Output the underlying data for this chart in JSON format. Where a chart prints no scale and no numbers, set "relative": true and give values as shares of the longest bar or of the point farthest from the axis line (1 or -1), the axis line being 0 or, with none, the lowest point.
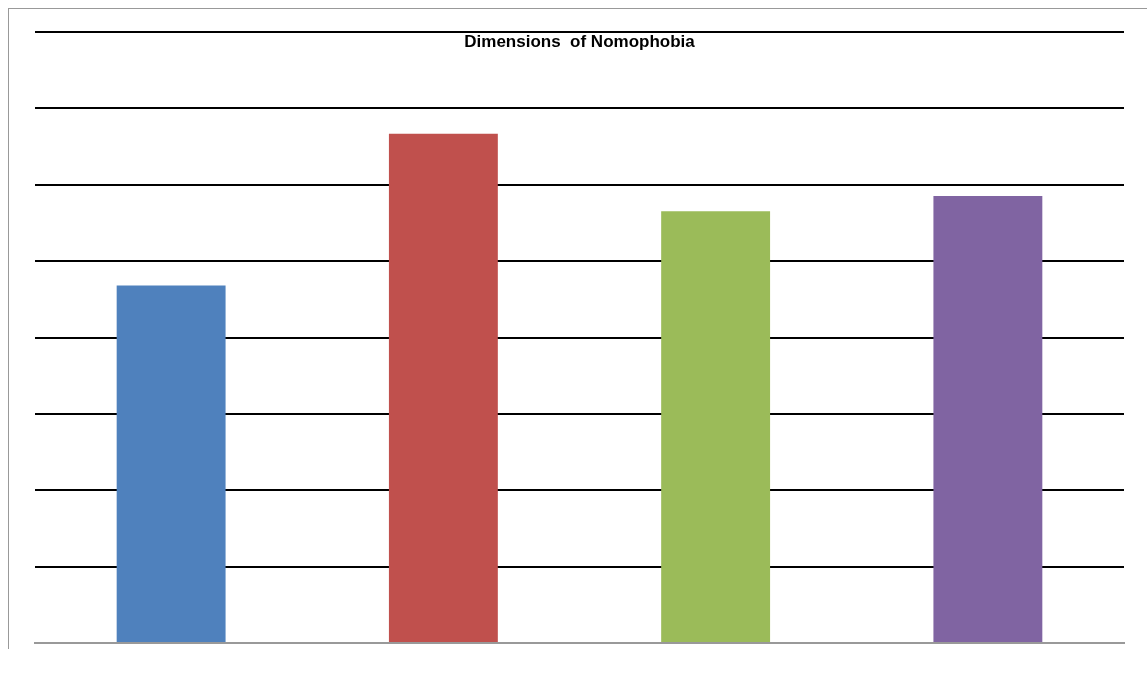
{
  "chart_data": {
    "type": "bar",
    "title": "Dimensions  of Nomophobia",
    "relative": true,
    "grid": "y",
    "categories": [
      null,
      null,
      null,
      null
    ],
    "values": [
      0.702,
      1,
      0.848,
      0.878
    ],
    "colors": [
      "#4f81bd",
      "#c0504d",
      "#9bbb59",
      "#8064a2"
    ]
  }
}
